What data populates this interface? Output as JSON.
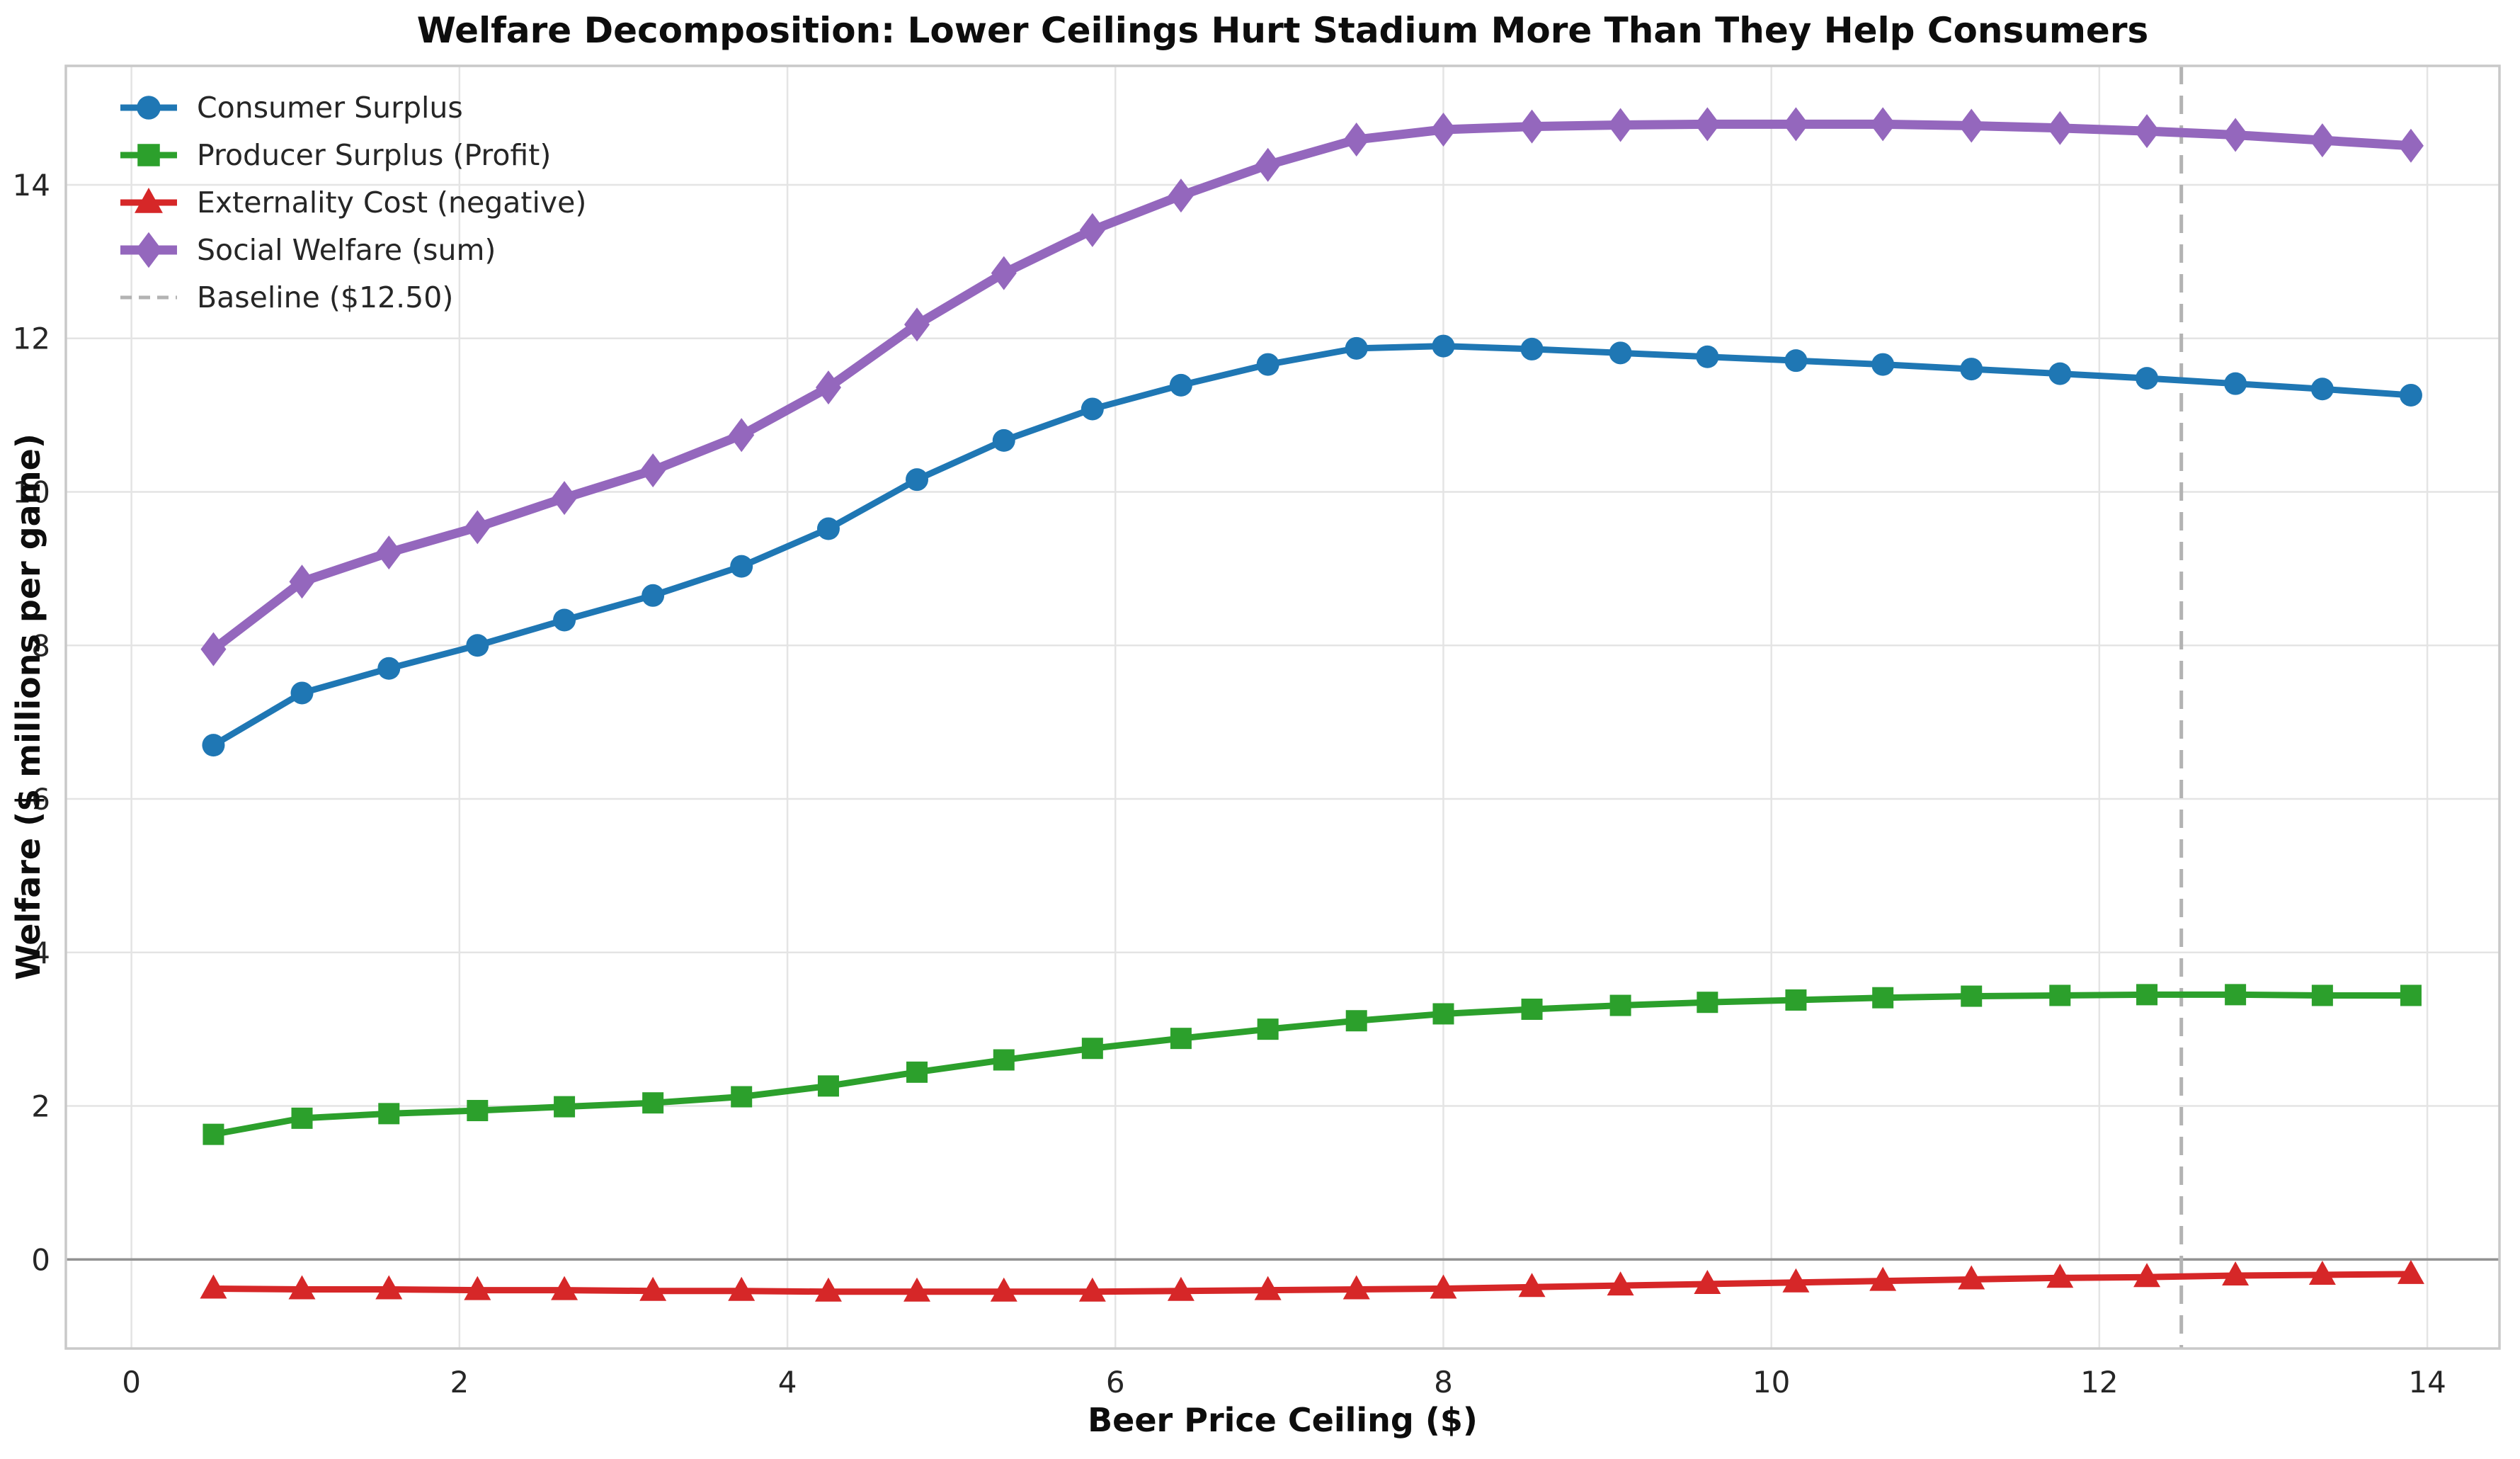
{
  "chart_data": {
    "type": "line",
    "title": "Welfare Decomposition: Lower Ceilings Hurt Stadium More Than They Help Consumers",
    "xlabel": "Beer Price Ceiling ($)",
    "ylabel": "Welfare ($ millions per game)",
    "x_ticks": [
      0,
      2,
      4,
      6,
      8,
      10,
      12,
      14
    ],
    "y_ticks": [
      0,
      2,
      4,
      6,
      8,
      10,
      12,
      14
    ],
    "xlim": [
      -0.4,
      14.44
    ],
    "ylim": [
      -1.16,
      15.55
    ],
    "grid": true,
    "legend_position": "upper left",
    "x": [
      0.5,
      1.04,
      1.57,
      2.11,
      2.64,
      3.18,
      3.72,
      4.25,
      4.79,
      5.32,
      5.86,
      6.4,
      6.93,
      7.47,
      8.0,
      8.54,
      9.08,
      9.61,
      10.15,
      10.68,
      11.22,
      11.76,
      12.29,
      12.83,
      13.36,
      13.9
    ],
    "series": [
      {
        "name": "Consumer Surplus",
        "color": "#1f77b4",
        "marker": "circle",
        "line_width": 9,
        "values": [
          6.7,
          7.38,
          7.7,
          8.0,
          8.33,
          8.65,
          9.03,
          9.52,
          10.16,
          10.67,
          11.08,
          11.39,
          11.66,
          11.87,
          11.9,
          11.86,
          11.81,
          11.76,
          11.71,
          11.66,
          11.6,
          11.54,
          11.48,
          11.41,
          11.34,
          11.26
        ]
      },
      {
        "name": "Producer Surplus (Profit)",
        "color": "#2ca02c",
        "marker": "square",
        "line_width": 9,
        "values": [
          1.63,
          1.84,
          1.9,
          1.94,
          1.99,
          2.04,
          2.12,
          2.26,
          2.44,
          2.6,
          2.75,
          2.88,
          3.0,
          3.11,
          3.2,
          3.26,
          3.31,
          3.35,
          3.38,
          3.41,
          3.43,
          3.44,
          3.45,
          3.45,
          3.44,
          3.44
        ]
      },
      {
        "name": "Externality Cost (negative)",
        "color": "#d62728",
        "marker": "triangle",
        "line_width": 9,
        "values": [
          -0.38,
          -0.39,
          -0.39,
          -0.4,
          -0.4,
          -0.41,
          -0.41,
          -0.42,
          -0.42,
          -0.42,
          -0.42,
          -0.41,
          -0.4,
          -0.39,
          -0.38,
          -0.36,
          -0.34,
          -0.32,
          -0.3,
          -0.28,
          -0.26,
          -0.24,
          -0.23,
          -0.21,
          -0.2,
          -0.19
        ]
      },
      {
        "name": "Social Welfare (sum)",
        "color": "#9467bd",
        "marker": "diamond",
        "line_width": 13,
        "values": [
          7.95,
          8.83,
          9.21,
          9.54,
          9.92,
          10.28,
          10.74,
          11.36,
          12.18,
          12.85,
          13.41,
          13.86,
          14.26,
          14.59,
          14.72,
          14.76,
          14.78,
          14.79,
          14.79,
          14.79,
          14.77,
          14.74,
          14.7,
          14.65,
          14.58,
          14.51
        ]
      }
    ],
    "baseline": {
      "name": "Baseline ($12.50)",
      "x": 12.5,
      "color": "#b3b3b3",
      "style": "dashed"
    },
    "zero_line": {
      "y": 0,
      "color": "#929292"
    },
    "colors": {
      "grid": "#e4e4e4",
      "spine": "#c9c9c9",
      "tick_text": "#262626",
      "background": "#ffffff"
    }
  }
}
